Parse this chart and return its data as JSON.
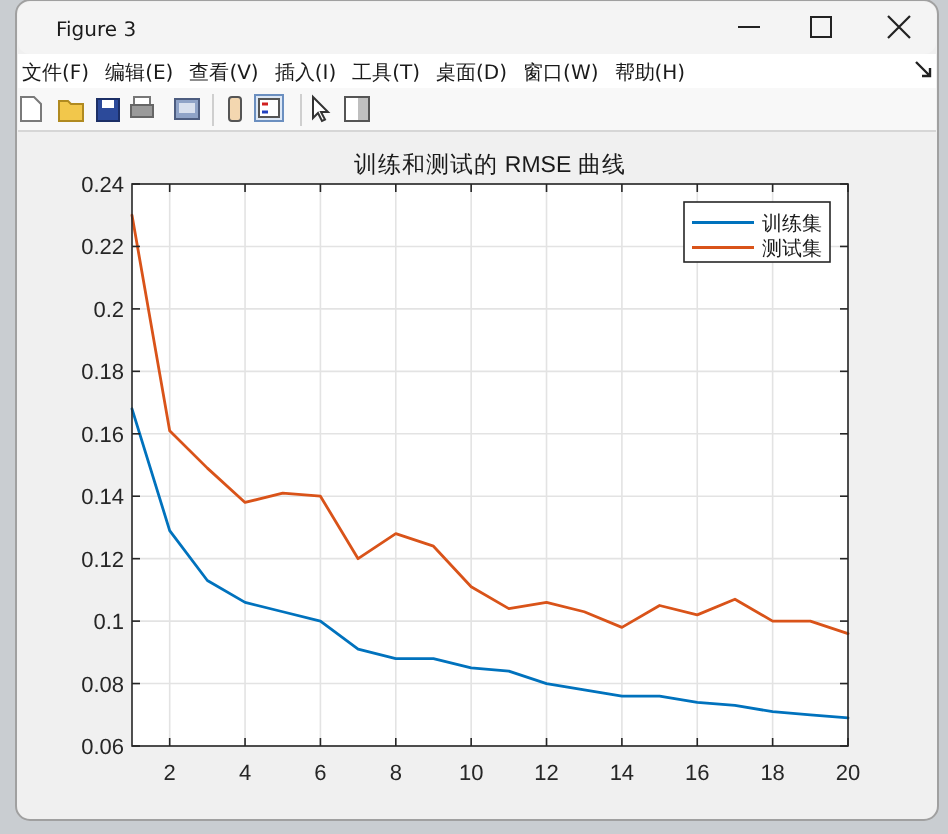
{
  "chart_data": {
    "type": "line",
    "title": "训练和测试的 RMSE 曲线",
    "x": [
      1,
      2,
      3,
      4,
      5,
      6,
      7,
      8,
      9,
      10,
      11,
      12,
      13,
      14,
      15,
      16,
      17,
      18,
      19,
      20
    ],
    "series": [
      {
        "name": "训练集",
        "color": "#0072bd",
        "values": [
          0.168,
          0.129,
          0.113,
          0.106,
          0.103,
          0.1,
          0.091,
          0.088,
          0.088,
          0.085,
          0.084,
          0.08,
          0.078,
          0.076,
          0.076,
          0.074,
          0.073,
          0.071,
          0.07,
          0.069
        ]
      },
      {
        "name": "测试集",
        "color": "#d95319",
        "values": [
          0.23,
          0.161,
          0.149,
          0.138,
          0.141,
          0.14,
          0.12,
          0.128,
          0.124,
          0.111,
          0.104,
          0.106,
          0.103,
          0.098,
          0.105,
          0.102,
          0.107,
          0.1,
          0.1,
          0.096
        ]
      }
    ],
    "xlim": [
      1,
      20
    ],
    "ylim": [
      0.06,
      0.24
    ],
    "xticks": [
      2,
      4,
      6,
      8,
      10,
      12,
      14,
      16,
      18,
      20
    ],
    "yticks": [
      0.06,
      0.08,
      0.1,
      0.12,
      0.14,
      0.16,
      0.18,
      0.2,
      0.22,
      0.24
    ],
    "grid": true,
    "legend": "top right",
    "annotations": [
      "Figure 3",
      "文件(F)",
      "编辑(E)",
      "查看(V)",
      "插入(I)",
      "工具(T)",
      "桌面(D)",
      "窗口(W)",
      "帮助(H)"
    ]
  }
}
